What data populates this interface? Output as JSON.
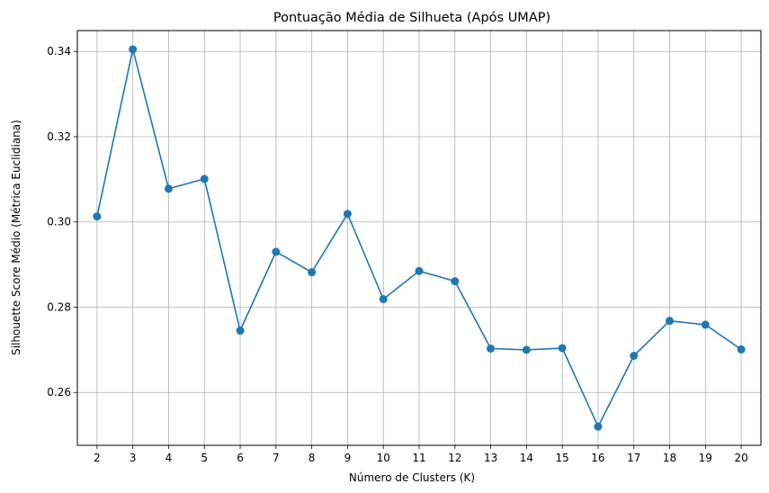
{
  "chart_data": {
    "type": "line",
    "title": "Pontuação Média de Silhueta (Após UMAP)",
    "xlabel": "Número de Clusters (K)",
    "ylabel": "Silhouette Score Médio (Métrica Euclidiana)",
    "x": [
      2,
      3,
      4,
      5,
      6,
      7,
      8,
      9,
      10,
      11,
      12,
      13,
      14,
      15,
      16,
      17,
      18,
      19,
      20
    ],
    "series": [
      {
        "values": [
          0.3013,
          0.3405,
          0.3078,
          0.3101,
          0.2745,
          0.293,
          0.2882,
          0.3019,
          0.2819,
          0.2885,
          0.2861,
          0.2703,
          0.27,
          0.2704,
          0.252,
          0.2686,
          0.2768,
          0.2759,
          0.2701
        ],
        "color": "#1f77b4"
      }
    ],
    "xlim": [
      1.45,
      20.55
    ],
    "ylim": [
      0.2476,
      0.3449
    ],
    "xticks": [
      "2",
      "3",
      "4",
      "5",
      "6",
      "7",
      "8",
      "9",
      "10",
      "11",
      "12",
      "13",
      "14",
      "15",
      "16",
      "17",
      "18",
      "19",
      "20"
    ],
    "yticks": [
      "0.26",
      "0.28",
      "0.30",
      "0.32",
      "0.34"
    ],
    "grid": true,
    "legend": "none",
    "marker": "circle"
  }
}
